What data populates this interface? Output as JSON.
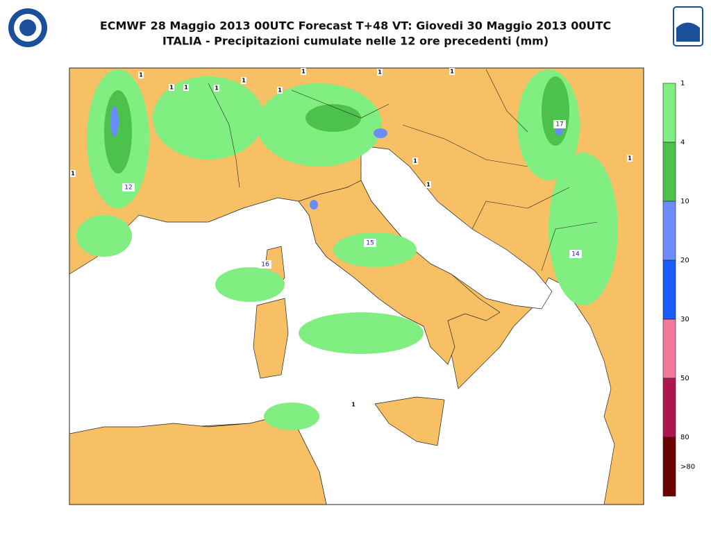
{
  "header": {
    "title_line1": "ECMWF 28 Maggio 2013 00UTC Forecast T+48 VT: Giovedi 30 Maggio 2013 00UTC",
    "title_line2": "ITALIA - Precipitazioni cumulate nelle 12 ore precedenti (mm)"
  },
  "legend": {
    "labels": [
      "1",
      "4",
      "10",
      "20",
      "30",
      "50",
      "80",
      ">80"
    ],
    "colors": [
      "#80ee80",
      "#4cc24c",
      "#6a8cff",
      "#1a5cff",
      "#f07898",
      "#b0164e",
      "#6a0000"
    ]
  },
  "map_labels": [
    "12",
    "17",
    "15",
    "16",
    "14"
  ],
  "contour_labels": [
    "1",
    "1",
    "1",
    "1",
    "1",
    "1",
    "1",
    "1",
    "1",
    "1",
    "1",
    "1",
    "1",
    "1"
  ]
}
